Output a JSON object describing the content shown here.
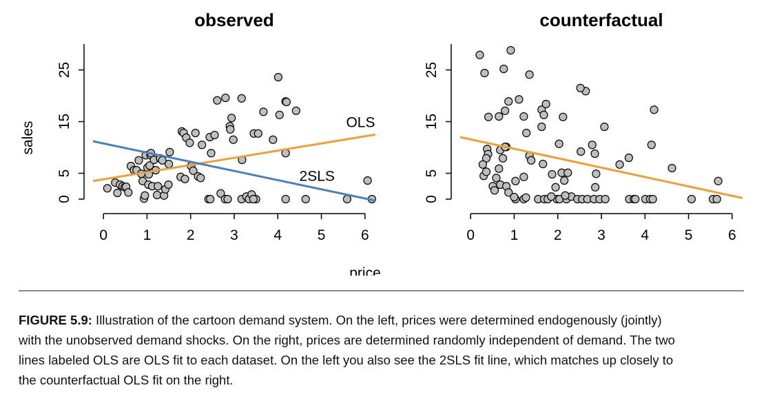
{
  "chart_data": [
    {
      "type": "scatter",
      "title": "observed",
      "xlabel": "price",
      "ylabel": "sales",
      "xlim": [
        -0.24,
        6.24
      ],
      "ylim": [
        -1.2,
        31.2
      ],
      "xticks": [
        0,
        1,
        2,
        3,
        4,
        5,
        6
      ],
      "yticks": [
        0,
        5,
        15,
        25
      ],
      "color": "#bebebe",
      "x": [
        0.09,
        0.27,
        0.32,
        0.38,
        0.44,
        0.49,
        0.52,
        0.57,
        0.63,
        0.7,
        0.76,
        0.81,
        0.87,
        0.9,
        0.93,
        0.95,
        0.97,
        1.01,
        1.03,
        1.04,
        1.06,
        1.08,
        1.09,
        1.12,
        1.16,
        1.2,
        1.23,
        1.25,
        1.3,
        1.35,
        1.39,
        1.42,
        1.49,
        1.52,
        1.5,
        1.77,
        1.8,
        1.84,
        1.87,
        1.9,
        1.98,
        2.01,
        2.06,
        2.11,
        2.17,
        2.23,
        2.26,
        2.41,
        2.44,
        2.45,
        2.47,
        2.55,
        2.61,
        2.69,
        2.8,
        2.79,
        2.85,
        2.9,
        2.91,
        2.94,
        2.98,
        3.17,
        3.18,
        3.17,
        3.28,
        3.34,
        3.4,
        3.45,
        3.5,
        3.55,
        3.67,
        3.89,
        4.01,
        4.04,
        4.18,
        4.2,
        4.18,
        4.18,
        4.42,
        4.64,
        5.59,
        6.06,
        6.16,
        3.44
      ],
      "values": [
        2.1,
        3.2,
        1.2,
        2.8,
        2.5,
        2.3,
        2.4,
        1.3,
        6.4,
        5.6,
        5.6,
        7.5,
        4.9,
        3.5,
        0.1,
        0.7,
        8.5,
        6.1,
        2.8,
        4.8,
        6.5,
        8.5,
        8.9,
        2.5,
        7.6,
        5.6,
        0.8,
        2.5,
        7.9,
        7.5,
        0.7,
        1.9,
        2.8,
        9.1,
        6.8,
        4.3,
        13.1,
        12.8,
        3.9,
        11.9,
        10.9,
        6.4,
        5.5,
        12.8,
        4.4,
        4.1,
        10.5,
        0,
        12.0,
        0,
        8.9,
        12.4,
        19.1,
        1.1,
        19.6,
        0,
        0,
        14.1,
        13.5,
        15.7,
        11.5,
        19.5,
        7.6,
        0,
        0.5,
        0,
        0.9,
        12.7,
        0,
        12.7,
        16.9,
        11.5,
        23.6,
        16.3,
        18.9,
        18.8,
        8.9,
        0,
        17.1,
        0,
        0,
        3.6,
        0,
        0
      ],
      "lines": [
        {
          "name": "OLS",
          "color": "#f0a030",
          "x": [
            -0.24,
            6.24
          ],
          "values": [
            3.5,
            12.5
          ],
          "label_at": [
            5.9,
            14.7
          ]
        },
        {
          "name": "2SLS",
          "color": "#4a7fc1",
          "x": [
            -0.24,
            6.24
          ],
          "values": [
            11.2,
            -0.3
          ],
          "label_at": [
            4.9,
            4.3
          ]
        }
      ]
    },
    {
      "type": "scatter",
      "title": "counterfactual",
      "xlim": [
        -0.24,
        6.24
      ],
      "ylim": [
        -1.2,
        31.2
      ],
      "xticks": [
        0,
        1,
        2,
        3,
        4,
        5,
        6
      ],
      "yticks": [
        0,
        5,
        15,
        25
      ],
      "color": "#bebebe",
      "x": [
        0.21,
        0.32,
        0.92,
        0.76,
        1.35,
        0.41,
        0.65,
        0.87,
        1.11,
        1.22,
        0.79,
        1.28,
        1.63,
        1.73,
        1.68,
        1.63,
        2.12,
        2.64,
        2.52,
        3.07,
        4.21,
        4.15,
        4.62,
        5.68,
        0.38,
        0.4,
        0.36,
        0.82,
        0.68,
        0.79,
        0.74,
        0.28,
        0.3,
        0.36,
        0.65,
        0.59,
        0.51,
        0.55,
        0.68,
        0.82,
        0.87,
        1.03,
        1.22,
        1.35,
        1.39,
        1.66,
        1.87,
        2.09,
        2.23,
        2.15,
        1.95,
        2.03,
        2.53,
        2.85,
        2.79,
        2.88,
        2.86,
        3.42,
        3.63,
        1.03,
        1.22,
        1.55,
        1.69,
        1.77,
        1.98,
        2.04,
        2.2,
        2.31,
        2.45,
        2.56,
        2.68,
        2.83,
        2.96,
        3.09,
        3.64,
        3.75,
        3.78,
        4.01,
        4.12,
        4.18,
        5.07,
        5.56,
        5.65,
        1.27,
        1.85,
        2.17,
        1.0
      ],
      "values": [
        27.9,
        24.4,
        28.8,
        25.2,
        24.1,
        15.9,
        16.0,
        18.9,
        19.3,
        16.0,
        17.1,
        12.8,
        17.3,
        18.4,
        16.3,
        14.0,
        15.9,
        20.9,
        21.5,
        14.0,
        17.3,
        10.5,
        6.0,
        3.5,
        9.7,
        8.7,
        7.9,
        10.1,
        9.5,
        10.1,
        7.9,
        6.7,
        4.5,
        5.3,
        5.9,
        4.1,
        2.5,
        1.7,
        2.8,
        2.5,
        1.3,
        3.5,
        4.3,
        8.4,
        7.5,
        6.8,
        4.8,
        5.1,
        5.1,
        3.6,
        2.3,
        10.7,
        9.2,
        8.8,
        10.5,
        4.9,
        2.3,
        6.7,
        8.0,
        0,
        0,
        0,
        0,
        0,
        0,
        0,
        0,
        0.5,
        0,
        0,
        0,
        0,
        0,
        0,
        0,
        0,
        0,
        0,
        0,
        0,
        0,
        0,
        0,
        0.3,
        0.5,
        0.7,
        0.4
      ],
      "lines": [
        {
          "color": "#f0a030",
          "x": [
            -0.24,
            6.24
          ],
          "values": [
            12.0,
            0.2
          ]
        }
      ]
    }
  ],
  "caption": {
    "label": "FIGURE 5.9:",
    "lines": [
      " Illustration of the cartoon demand system. On the left, prices were determined endogenously (jointly)",
      "with the unobserved demand shocks. On the right, prices are determined randomly independent of demand. The two",
      "lines labeled OLS are OLS fit to each dataset. On the left you also see the 2SLS fit line, which matches up closely to",
      "the counterfactual OLS fit on the right."
    ]
  }
}
